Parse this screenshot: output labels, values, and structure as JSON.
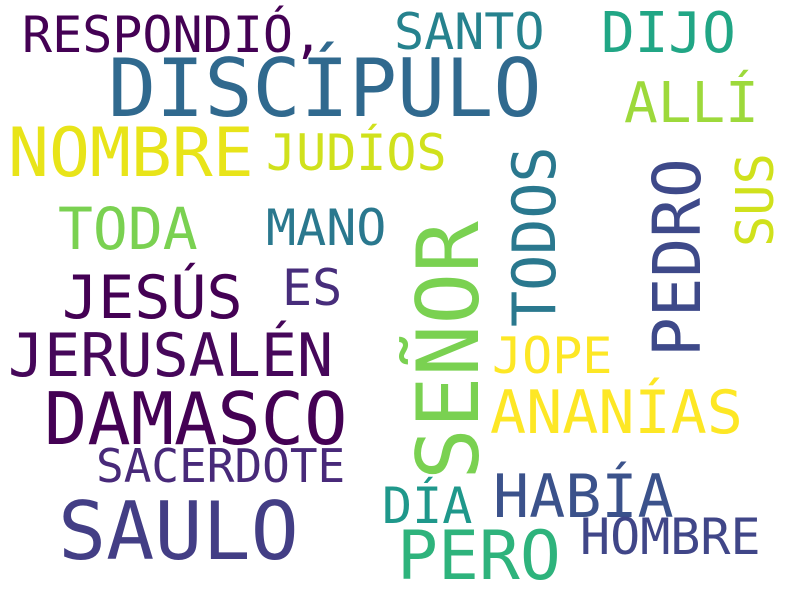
{
  "words": {
    "respondio": {
      "text": "RESPONDIÓ,",
      "color": "#440154"
    },
    "santo": {
      "text": "SANTO",
      "color": "#26828e"
    },
    "dijo": {
      "text": "DIJO",
      "color": "#21a685"
    },
    "discipulo": {
      "text": "DISCÍPULO",
      "color": "#30698e"
    },
    "alli": {
      "text": "ALLÍ",
      "color": "#9dd93b"
    },
    "nombre": {
      "text": "NOMBRE",
      "color": "#e8e419"
    },
    "judios": {
      "text": "JUDÍOS",
      "color": "#d0e11c"
    },
    "toda": {
      "text": "TODA",
      "color": "#7ad151"
    },
    "mano": {
      "text": "MANO",
      "color": "#2a788e"
    },
    "es": {
      "text": "ES",
      "color": "#472d7b"
    },
    "jesus": {
      "text": "JESÚS",
      "color": "#440154"
    },
    "jerusalen": {
      "text": "JERUSALÉN",
      "color": "#46075a"
    },
    "damasco": {
      "text": "DAMASCO",
      "color": "#440154"
    },
    "jope": {
      "text": "JOPE",
      "color": "#fde725"
    },
    "ananias": {
      "text": "ANANÍAS",
      "color": "#fde725"
    },
    "sacerdote": {
      "text": "SACERDOTE",
      "color": "#482979"
    },
    "dia": {
      "text": "DÍA",
      "color": "#1f988b"
    },
    "habia": {
      "text": "HABÍA",
      "color": "#3b528b"
    },
    "saulo": {
      "text": "SAULO",
      "color": "#433e85"
    },
    "hombre": {
      "text": "HOMBRE",
      "color": "#404688"
    },
    "pero": {
      "text": "PERO",
      "color": "#2eb37c"
    },
    "senor": {
      "text": "SEÑOR",
      "color": "#7ad151"
    },
    "todos": {
      "text": "TODOS",
      "color": "#2a788e"
    },
    "pedro": {
      "text": "PEDRO",
      "color": "#3e4989"
    },
    "sus": {
      "text": "SUS",
      "color": "#d0e11c"
    }
  }
}
